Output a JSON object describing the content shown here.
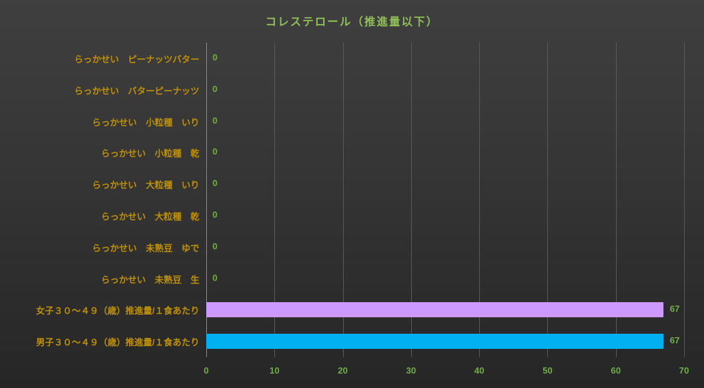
{
  "title": "コレステロール（推進量以下）",
  "colors": {
    "background_top": "#3f3f3f",
    "background_bottom": "#262626",
    "title": "#8fbf55",
    "category_label": "#bf9000",
    "value_label": "#70ad47",
    "tick_label": "#70ad47",
    "gridline": "#5a5a5a",
    "axis_line": "#8c8c8c"
  },
  "chart_data": {
    "type": "bar",
    "orientation": "horizontal",
    "title": "コレステロール（推進量以下）",
    "categories": [
      "らっかせい　ピーナッツバター",
      "らっかせい　バターピーナッツ",
      "らっかせい　小粒種　いり",
      "らっかせい　小粒種　乾",
      "らっかせい　大粒種　いり",
      "らっかせい　大粒種　乾",
      "らっかせい　未熟豆　ゆで",
      "らっかせい　未熟豆　生",
      "女子３０～４９（歳）推進量/１食あたり",
      "男子３０～４９（歳）推進量/１食あたり"
    ],
    "values": [
      0,
      0,
      0,
      0,
      0,
      0,
      0,
      0,
      67,
      67
    ],
    "bar_colors": [
      null,
      null,
      null,
      null,
      null,
      null,
      null,
      null,
      "#cc99ff",
      "#00b0f0"
    ],
    "data_labels": [
      "0",
      "0",
      "0",
      "0",
      "0",
      "0",
      "0",
      "0",
      "67",
      "67"
    ],
    "xlabel": "",
    "ylabel": "",
    "xlim": [
      0,
      70
    ],
    "xticks": [
      0,
      10,
      20,
      30,
      40,
      50,
      60,
      70
    ],
    "grid": true,
    "legend": false
  }
}
